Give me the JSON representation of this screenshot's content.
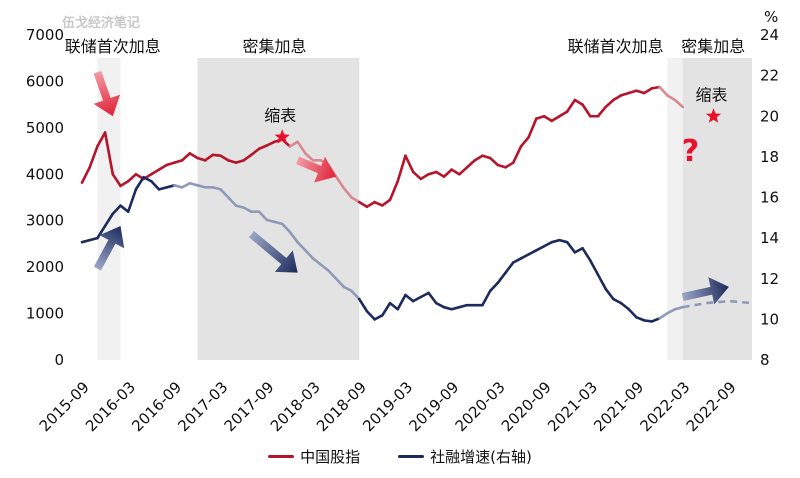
{
  "watermark": "伍戈经济笔记",
  "chart_data": {
    "type": "line",
    "left_axis": {
      "min": 0,
      "max": 7000,
      "ticks": [
        "0",
        "1000",
        "2000",
        "3000",
        "4000",
        "5000",
        "6000",
        "7000"
      ]
    },
    "right_axis": {
      "min": 8,
      "max": 24,
      "unit": "%",
      "ticks": [
        "8",
        "10",
        "12",
        "14",
        "16",
        "18",
        "20",
        "22",
        "24"
      ]
    },
    "x_ticks": [
      "2015-09",
      "2016-03",
      "2016-09",
      "2017-03",
      "2017-09",
      "2018-03",
      "2018-09",
      "2019-03",
      "2019-09",
      "2020-03",
      "2020-09",
      "2021-03",
      "2021-09",
      "2022-03",
      "2022-09"
    ],
    "series": [
      {
        "name": "中国股指",
        "axis": "left",
        "color": "#b5142b",
        "faded_color": "#d98890",
        "points": [
          [
            "2015-09",
            3820
          ],
          [
            "2015-10",
            4150
          ],
          [
            "2015-11",
            4600
          ],
          [
            "2015-12",
            4900
          ],
          [
            "2016-01",
            4000
          ],
          [
            "2016-02",
            3750
          ],
          [
            "2016-03",
            3850
          ],
          [
            "2016-04",
            4000
          ],
          [
            "2016-05",
            3900
          ],
          [
            "2016-06",
            4000
          ],
          [
            "2016-07",
            4100
          ],
          [
            "2016-08",
            4200
          ],
          [
            "2016-09",
            4250
          ],
          [
            "2016-10",
            4300
          ],
          [
            "2016-11",
            4450
          ],
          [
            "2016-12",
            4350
          ],
          [
            "2017-01",
            4300
          ],
          [
            "2017-02",
            4420
          ],
          [
            "2017-03",
            4400
          ],
          [
            "2017-04",
            4300
          ],
          [
            "2017-05",
            4250
          ],
          [
            "2017-06",
            4300
          ],
          [
            "2017-07",
            4420
          ],
          [
            "2017-08",
            4550
          ],
          [
            "2017-09",
            4620
          ],
          [
            "2017-10",
            4700
          ],
          [
            "2017-11",
            4750
          ],
          [
            "2017-12",
            4600
          ],
          [
            "2018-01",
            4700
          ],
          [
            "2018-02",
            4450
          ],
          [
            "2018-03",
            4300
          ],
          [
            "2018-04",
            4300
          ],
          [
            "2018-05",
            4200
          ],
          [
            "2018-06",
            3950
          ],
          [
            "2018-07",
            3700
          ],
          [
            "2018-08",
            3500
          ],
          [
            "2018-09",
            3400
          ],
          [
            "2018-10",
            3300
          ],
          [
            "2018-11",
            3400
          ],
          [
            "2018-12",
            3330
          ],
          [
            "2019-01",
            3450
          ],
          [
            "2019-02",
            3850
          ],
          [
            "2019-03",
            4400
          ],
          [
            "2019-04",
            4050
          ],
          [
            "2019-05",
            3900
          ],
          [
            "2019-06",
            4000
          ],
          [
            "2019-07",
            4050
          ],
          [
            "2019-08",
            3950
          ],
          [
            "2019-09",
            4100
          ],
          [
            "2019-10",
            4000
          ],
          [
            "2019-11",
            4150
          ],
          [
            "2019-12",
            4300
          ],
          [
            "2020-01",
            4400
          ],
          [
            "2020-02",
            4350
          ],
          [
            "2020-03",
            4200
          ],
          [
            "2020-04",
            4150
          ],
          [
            "2020-05",
            4250
          ],
          [
            "2020-06",
            4600
          ],
          [
            "2020-07",
            4800
          ],
          [
            "2020-08",
            5200
          ],
          [
            "2020-09",
            5250
          ],
          [
            "2020-10",
            5150
          ],
          [
            "2020-11",
            5250
          ],
          [
            "2020-12",
            5350
          ],
          [
            "2021-01",
            5600
          ],
          [
            "2021-02",
            5500
          ],
          [
            "2021-03",
            5250
          ],
          [
            "2021-04",
            5250
          ],
          [
            "2021-05",
            5450
          ],
          [
            "2021-06",
            5600
          ],
          [
            "2021-07",
            5700
          ],
          [
            "2021-08",
            5750
          ],
          [
            "2021-09",
            5800
          ],
          [
            "2021-10",
            5750
          ],
          [
            "2021-11",
            5850
          ],
          [
            "2021-12",
            5880
          ],
          [
            "2022-01",
            5700
          ],
          [
            "2022-02",
            5600
          ],
          [
            "2022-03",
            5450
          ]
        ],
        "faded_ranges": [
          [
            "2017-12",
            "2018-09"
          ],
          [
            "2021-12",
            "2022-03"
          ]
        ]
      },
      {
        "name": "社融增速(右轴)",
        "axis": "right",
        "color": "#1c2a5c",
        "faded_color": "#8e9ab8",
        "points": [
          [
            "2015-09",
            13.8
          ],
          [
            "2015-10",
            13.9
          ],
          [
            "2015-11",
            14.0
          ],
          [
            "2015-12",
            14.6
          ],
          [
            "2016-01",
            15.2
          ],
          [
            "2016-02",
            15.6
          ],
          [
            "2016-03",
            15.3
          ],
          [
            "2016-04",
            16.4
          ],
          [
            "2016-05",
            17.0
          ],
          [
            "2016-06",
            16.8
          ],
          [
            "2016-07",
            16.4
          ],
          [
            "2016-08",
            16.5
          ],
          [
            "2016-09",
            16.6
          ],
          [
            "2016-10",
            16.5
          ],
          [
            "2016-11",
            16.7
          ],
          [
            "2016-12",
            16.6
          ],
          [
            "2017-01",
            16.5
          ],
          [
            "2017-02",
            16.5
          ],
          [
            "2017-03",
            16.4
          ],
          [
            "2017-04",
            16.0
          ],
          [
            "2017-05",
            15.6
          ],
          [
            "2017-06",
            15.5
          ],
          [
            "2017-07",
            15.3
          ],
          [
            "2017-08",
            15.3
          ],
          [
            "2017-09",
            14.9
          ],
          [
            "2017-10",
            14.8
          ],
          [
            "2017-11",
            14.7
          ],
          [
            "2017-12",
            14.3
          ],
          [
            "2018-01",
            13.8
          ],
          [
            "2018-02",
            13.4
          ],
          [
            "2018-03",
            13.0
          ],
          [
            "2018-04",
            12.7
          ],
          [
            "2018-05",
            12.4
          ],
          [
            "2018-06",
            12.0
          ],
          [
            "2018-07",
            11.6
          ],
          [
            "2018-08",
            11.4
          ],
          [
            "2018-09",
            11.0
          ],
          [
            "2018-10",
            10.4
          ],
          [
            "2018-11",
            10.0
          ],
          [
            "2018-12",
            10.2
          ],
          [
            "2019-01",
            10.8
          ],
          [
            "2019-02",
            10.5
          ],
          [
            "2019-03",
            11.2
          ],
          [
            "2019-04",
            10.9
          ],
          [
            "2019-05",
            11.1
          ],
          [
            "2019-06",
            11.3
          ],
          [
            "2019-07",
            10.8
          ],
          [
            "2019-08",
            10.6
          ],
          [
            "2019-09",
            10.5
          ],
          [
            "2019-10",
            10.6
          ],
          [
            "2019-11",
            10.7
          ],
          [
            "2019-12",
            10.7
          ],
          [
            "2020-01",
            10.7
          ],
          [
            "2020-02",
            11.4
          ],
          [
            "2020-03",
            11.8
          ],
          [
            "2020-04",
            12.3
          ],
          [
            "2020-05",
            12.8
          ],
          [
            "2020-06",
            13.0
          ],
          [
            "2020-07",
            13.2
          ],
          [
            "2020-08",
            13.4
          ],
          [
            "2020-09",
            13.6
          ],
          [
            "2020-10",
            13.8
          ],
          [
            "2020-11",
            13.9
          ],
          [
            "2020-12",
            13.8
          ],
          [
            "2021-01",
            13.3
          ],
          [
            "2021-02",
            13.5
          ],
          [
            "2021-03",
            12.9
          ],
          [
            "2021-04",
            12.2
          ],
          [
            "2021-05",
            11.5
          ],
          [
            "2021-06",
            11.0
          ],
          [
            "2021-07",
            10.8
          ],
          [
            "2021-08",
            10.5
          ],
          [
            "2021-09",
            10.1
          ],
          [
            "2021-10",
            9.95
          ],
          [
            "2021-11",
            9.9
          ],
          [
            "2021-12",
            10.05
          ],
          [
            "2022-01",
            10.3
          ],
          [
            "2022-02",
            10.5
          ],
          [
            "2022-03",
            10.6
          ]
        ],
        "faded_ranges": [
          [
            "2016-09",
            "2018-09"
          ],
          [
            "2021-12",
            "2022-03"
          ]
        ],
        "projection": [
          [
            "2022-03",
            10.6
          ],
          [
            "2022-06",
            10.8
          ],
          [
            "2022-09",
            10.9
          ],
          [
            "2022-12",
            10.8
          ]
        ]
      }
    ],
    "bands": [
      {
        "from": "2015-11",
        "to": "2016-02",
        "label": "联储首次加息",
        "shade": "light"
      },
      {
        "from": "2016-12",
        "to": "2018-09",
        "label": "密集加息",
        "shade": "dark"
      },
      {
        "from": "2022-01",
        "to": "2022-03",
        "label": "联储首次加息",
        "shade": "light"
      },
      {
        "from": "2022-03",
        "to": "2022-12",
        "label": "密集加息",
        "shade": "dark"
      }
    ],
    "annotations": [
      {
        "type": "star",
        "at": [
          "2017-11",
          4800
        ],
        "axis": "left",
        "label": "缩表"
      },
      {
        "type": "star",
        "at": [
          "2022-07",
          5250
        ],
        "axis": "left",
        "label": "缩表"
      },
      {
        "type": "question",
        "at": [
          "2022-04",
          4550
        ],
        "axis": "left",
        "text": "?"
      }
    ],
    "arrows": [
      {
        "color": "red",
        "from": [
          "2015-11",
          6200
        ],
        "to": [
          "2016-01",
          5250
        ]
      },
      {
        "color": "red",
        "from": [
          "2018-01",
          4300
        ],
        "to": [
          "2018-06",
          3950
        ]
      },
      {
        "color": "navy",
        "from": [
          "2015-11",
          12.5
        ],
        "to": [
          "2016-02",
          14.6
        ]
      },
      {
        "color": "navy",
        "from": [
          "2017-07",
          14.2
        ],
        "to": [
          "2018-01",
          12.3
        ]
      },
      {
        "color": "navy",
        "from": [
          "2022-03",
          11.1
        ],
        "to": [
          "2022-09",
          11.6
        ]
      }
    ]
  }
}
